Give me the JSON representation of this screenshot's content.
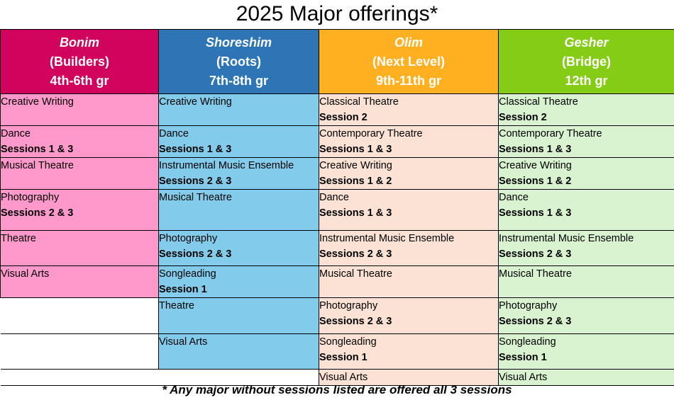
{
  "title": "2025 Major offerings*",
  "colors": {
    "bonim_header": "#D1035C",
    "bonim_cell": "#FF99CC",
    "shoreshim_header": "#2E75B6",
    "shoreshim_cell": "#83CBEB",
    "olim_header": "#FFB020",
    "olim_cell": "#FBE2D5",
    "gesher_header": "#84CC16",
    "gesher_cell": "#D9F2D0"
  },
  "columns": [
    {
      "name": "Bonim",
      "subtitle": "(Builders)",
      "grades": "4th-6th gr"
    },
    {
      "name": "Shoreshim",
      "subtitle": "(Roots)",
      "grades": "7th-8th gr"
    },
    {
      "name": "Olim",
      "subtitle": "(Next Level)",
      "grades": "9th-11th gr"
    },
    {
      "name": "Gesher",
      "subtitle": "(Bridge)",
      "grades": "12th gr"
    }
  ],
  "rows": [
    [
      {
        "name": "Creative Writing",
        "sessions": ""
      },
      {
        "name": "Creative Writing",
        "sessions": ""
      },
      {
        "name": "Classical Theatre",
        "sessions": "Session 2"
      },
      {
        "name": "Classical Theatre",
        "sessions": "Session 2"
      }
    ],
    [
      {
        "name": "Dance",
        "sessions": "Sessions 1 & 3"
      },
      {
        "name": "Dance",
        "sessions": "Sessions 1 & 3"
      },
      {
        "name": "Contemporary Theatre",
        "sessions": "Sessions 1 & 3"
      },
      {
        "name": "Contemporary Theatre",
        "sessions": "Sessions 1 & 3"
      }
    ],
    [
      {
        "name": "Musical Theatre",
        "sessions": ""
      },
      {
        "name": "Instrumental Music Ensemble",
        "sessions": "Sessions 2 & 3"
      },
      {
        "name": "Creative Writing",
        "sessions": "Sessions 1 & 2"
      },
      {
        "name": "Creative Writing",
        "sessions": "Sessions 1 & 2"
      }
    ],
    [
      {
        "name": "Photography",
        "sessions": "Sessions 2 & 3"
      },
      {
        "name": "Musical Theatre",
        "sessions": ""
      },
      {
        "name": "Dance",
        "sessions": "Sessions 1 & 3"
      },
      {
        "name": "Dance",
        "sessions": "Sessions 1 & 3"
      }
    ],
    [
      {
        "name": "Theatre",
        "sessions": ""
      },
      {
        "name": "Photography",
        "sessions": "Sessions 2 & 3"
      },
      {
        "name": "Instrumental Music Ensemble",
        "sessions": "Sessions 2 & 3"
      },
      {
        "name": "Instrumental Music Ensemble",
        "sessions": "Sessions 2 & 3"
      }
    ],
    [
      {
        "name": "Visual Arts",
        "sessions": ""
      },
      {
        "name": "Songleading",
        "sessions": "Session 1"
      },
      {
        "name": "Musical Theatre",
        "sessions": ""
      },
      {
        "name": "Musical Theatre",
        "sessions": ""
      }
    ],
    [
      null,
      {
        "name": "Theatre",
        "sessions": ""
      },
      {
        "name": "Photography",
        "sessions": "Sessions 2 & 3"
      },
      {
        "name": "Photography",
        "sessions": "Sessions 2 & 3"
      }
    ],
    [
      null,
      {
        "name": "Visual Arts",
        "sessions": ""
      },
      {
        "name": "Songleading",
        "sessions": "Session 1"
      },
      {
        "name": "Songleading",
        "sessions": "Session 1"
      }
    ],
    [
      null,
      null,
      {
        "name": "Visual Arts",
        "sessions": ""
      },
      {
        "name": "Visual Arts",
        "sessions": ""
      }
    ]
  ],
  "footnote": "* Any major without sessions listed are offered all 3 sessions"
}
